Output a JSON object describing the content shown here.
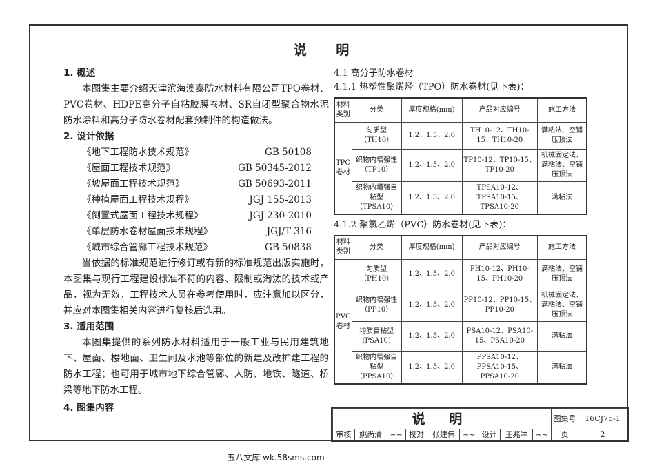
{
  "title": "说 明",
  "left": {
    "s1_heading": "1. 概述",
    "s1_text": "本图集主要介绍天津滨海澳泰防水材料有限公司TPO卷材、PVC卷材、HDPE高分子自粘胶膜卷材、SR自闭型聚合物水泥防水涂料和高分子防水卷材配套预制件的构造做法。",
    "s2_heading": "2. 设计依据",
    "refs": [
      {
        "name": "《地下工程防水技术规范》",
        "code": "GB 50108"
      },
      {
        "name": "《屋面工程技术规范》",
        "code": "GB 50345-2012"
      },
      {
        "name": "《坡屋面工程技术规范》",
        "code": "GB 50693-2011"
      },
      {
        "name": "《种植屋面工程技术规程》",
        "code": "JGJ 155-2013"
      },
      {
        "name": "《倒置式屋面工程技术规程》",
        "code": "JGJ 230-2010"
      },
      {
        "name": "《单层防水卷材屋面技术规程》",
        "code": "JGJ/T 316"
      },
      {
        "name": "《城市综合管廊工程技术规范》",
        "code": "GB 50838"
      }
    ],
    "s2_text": "当依据的标准规范进行修订或有新的标准规范出版实施时，本图集与现行工程建设标准不符的内容、限制或淘汰的技术或产品，视为无效，工程技术人员在参考使用时，应注意加以区分，并应对本图集相关内容进行复核后选用。",
    "s3_heading": "3. 适用范围",
    "s3_text": "本图集提供的系列防水材料适用于一般工业与民用建筑地下、屋面、楼地面、卫生间及水池等部位的新建及改扩建工程的防水工程；也可用于城市地下综合管廊、人防、地铁、隧道、桥梁等地下防水工程。",
    "s4_heading": "4. 图集内容"
  },
  "right": {
    "h41": "4.1 高分子防水卷材",
    "h411": "4.1.1 热塑性聚烯烃（TPO）防水卷材(见下表)：",
    "h412": "4.1.2 聚氯乙烯（PVC）防水卷材(见下表)：",
    "headers": [
      "材料类别",
      "分类",
      "厚度规格(mm)",
      "产品对应编号",
      "施工方法"
    ],
    "tpo": {
      "category": "TPO卷材",
      "rows": [
        [
          "匀质型（TH10）",
          "1.2、1.5、2.0",
          "TH10-12、TH10-15、TH10-20",
          "满粘法、空铺压顶法"
        ],
        [
          "织物内增强性（TP10）",
          "1.2、1.5、2.0",
          "TP10-12、TP10-15、TP10-20",
          "机械固定法、满粘法、空铺压顶法"
        ],
        [
          "织物内增强自粘型（TPSA10）",
          "1.2、1.5、2.0",
          "TPSA10-12、TPSA10-15、TPSA10-20",
          "满粘法"
        ]
      ]
    },
    "pvc": {
      "category": "PVC卷材",
      "rows": [
        [
          "匀质型（PH10）",
          "1.2、1.5、2.0",
          "PH10-12、PH10-15、PH10-20",
          "满粘法、空铺压顶法"
        ],
        [
          "织物内增强性（PP10）",
          "1.2、1.5、2.0",
          "PP10-12、PP10-15、PP10-20",
          "机械固定法、满粘法、空铺压顶法"
        ],
        [
          "均质自粘型(PSA10)",
          "1.2、1.5、2.0",
          "PSA10-12、PSA10-15、PSA10-20",
          "满粘法"
        ],
        [
          "织物内增强自粘型（PPSA10）",
          "1.2、1.5、2.0",
          "PPSA10-12、PPSA10-15、PPSA10-20",
          "满粘法"
        ]
      ]
    }
  },
  "titleblock": {
    "title": "说 明",
    "atlas_label": "图集号",
    "atlas_no": "16CJ75-1",
    "page_label": "页",
    "page_no": "2",
    "review_label": "审核",
    "reviewer": "姚尚清",
    "check_label": "校对",
    "checker": "张建伟",
    "design_label": "设计",
    "designer": "王兆冲"
  },
  "watermark": "五八文库 wk.58sms.com"
}
